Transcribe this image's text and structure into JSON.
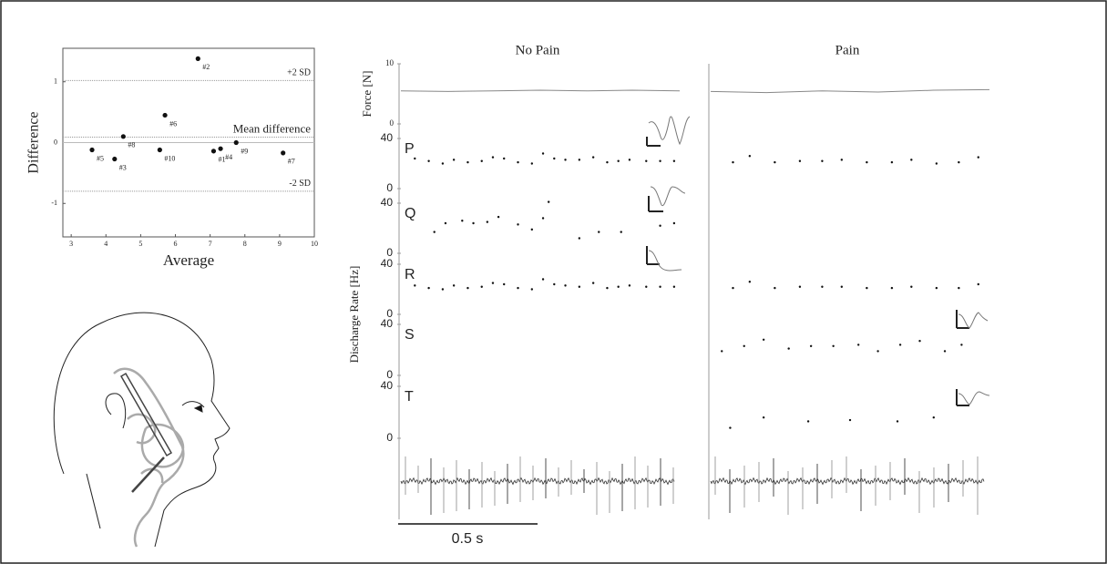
{
  "chart_data": [
    {
      "type": "scatter",
      "xlabel": "Average",
      "ylabel": "Difference",
      "xlim": [
        2.76,
        10
      ],
      "xticks": [
        3,
        4,
        5,
        6,
        7,
        8,
        9,
        10
      ],
      "ylim": [
        -1.55,
        1.55
      ],
      "yticks": [
        -1,
        0,
        1
      ],
      "x": [
        7.1,
        6.65,
        4.25,
        7.3,
        3.6,
        5.7,
        9.1,
        4.5,
        7.75,
        5.55
      ],
      "values": [
        -0.14,
        1.38,
        -0.27,
        -0.1,
        -0.12,
        0.45,
        -0.17,
        0.1,
        0.0,
        -0.12
      ],
      "labels": [
        "#1",
        "#2",
        "#3",
        "#4",
        "#5",
        "#6",
        "#7",
        "#8",
        "#9",
        "#10"
      ],
      "color": "#111111",
      "hlines": [
        {
          "value": 1.02,
          "label": "+2 SD"
        },
        {
          "value": 0.09,
          "label": "Mean difference"
        },
        {
          "value": -0.8,
          "label": "-2 SD"
        }
      ]
    },
    {
      "type": "raster",
      "conditions": [
        "No Pain",
        "Pain"
      ],
      "xlim": [
        0,
        1
      ],
      "scale_bar": {
        "value": 0.5,
        "label": "0.5 s"
      },
      "force": {
        "ylabel": "Force [N]",
        "ylim": [
          0,
          10
        ],
        "yticks": [
          0,
          10
        ],
        "color": "#888888",
        "x": [
          [
            0,
            0.17,
            0.33,
            0.5,
            0.67,
            0.83,
            1
          ],
          [
            0,
            0.2,
            0.4,
            0.6,
            0.8,
            1
          ]
        ],
        "values": [
          [
            5.5,
            5.4,
            5.5,
            5.6,
            5.5,
            5.6,
            5.5
          ],
          [
            5.4,
            5.2,
            5.5,
            5.3,
            5.6,
            5.7
          ]
        ]
      },
      "ylabel": "Discharge Rate [Hz]",
      "ylim": [
        0,
        40
      ],
      "yticks": [
        0,
        40
      ],
      "color": "#111111",
      "units": [
        {
          "label": "P",
          "x": [
            [
              0.05,
              0.1,
              0.15,
              0.19,
              0.24,
              0.29,
              0.33,
              0.37,
              0.42,
              0.47,
              0.51,
              0.55,
              0.59,
              0.64,
              0.69,
              0.74,
              0.78,
              0.82,
              0.88,
              0.93,
              0.98
            ],
            [
              0.08,
              0.14,
              0.23,
              0.32,
              0.4,
              0.47,
              0.56,
              0.65,
              0.72,
              0.81,
              0.89,
              0.96
            ]
          ],
          "values": [
            [
              24,
              22,
              20,
              23,
              21,
              22,
              25,
              24,
              21,
              20,
              28,
              24,
              23,
              23,
              25,
              21,
              22,
              23,
              22,
              22,
              22
            ],
            [
              21,
              26,
              21,
              22,
              22,
              23,
              21,
              21,
              23,
              20,
              21,
              25
            ]
          ]
        },
        {
          "label": "Q",
          "x": [
            [
              0.12,
              0.16,
              0.22,
              0.26,
              0.31,
              0.35,
              0.42,
              0.47,
              0.51,
              0.53,
              0.64,
              0.71,
              0.79,
              0.93,
              0.98
            ],
            []
          ],
          "values": [
            [
              17,
              24,
              26,
              24,
              25,
              29,
              23,
              19,
              28,
              41,
              12,
              17,
              17,
              22,
              24
            ],
            []
          ]
        },
        {
          "label": "R",
          "x": [
            [
              0.05,
              0.1,
              0.15,
              0.19,
              0.24,
              0.29,
              0.33,
              0.37,
              0.42,
              0.47,
              0.51,
              0.55,
              0.59,
              0.64,
              0.69,
              0.74,
              0.78,
              0.82,
              0.88,
              0.93,
              0.98
            ],
            [
              0.08,
              0.14,
              0.23,
              0.32,
              0.4,
              0.47,
              0.56,
              0.65,
              0.72,
              0.81,
              0.89,
              0.96
            ]
          ],
          "values": [
            [
              23,
              21,
              20,
              23,
              21,
              22,
              25,
              24,
              21,
              20,
              28,
              24,
              23,
              22,
              25,
              21,
              22,
              23,
              22,
              22,
              22
            ],
            [
              21,
              26,
              21,
              22,
              22,
              22,
              21,
              21,
              22,
              21,
              21,
              24
            ]
          ]
        },
        {
          "label": "S",
          "x": [
            [],
            [
              0.04,
              0.12,
              0.19,
              0.28,
              0.36,
              0.44,
              0.53,
              0.6,
              0.68,
              0.75,
              0.84,
              0.9
            ]
          ],
          "values": [
            [],
            [
              19,
              23,
              28,
              21,
              23,
              23,
              24,
              19,
              24,
              27,
              19,
              24
            ]
          ]
        },
        {
          "label": "T",
          "x": [
            [],
            [
              0.07,
              0.19,
              0.35,
              0.5,
              0.67,
              0.8
            ]
          ],
          "values": [
            [],
            [
              8,
              16,
              13,
              14,
              13,
              16
            ]
          ]
        }
      ]
    }
  ]
}
